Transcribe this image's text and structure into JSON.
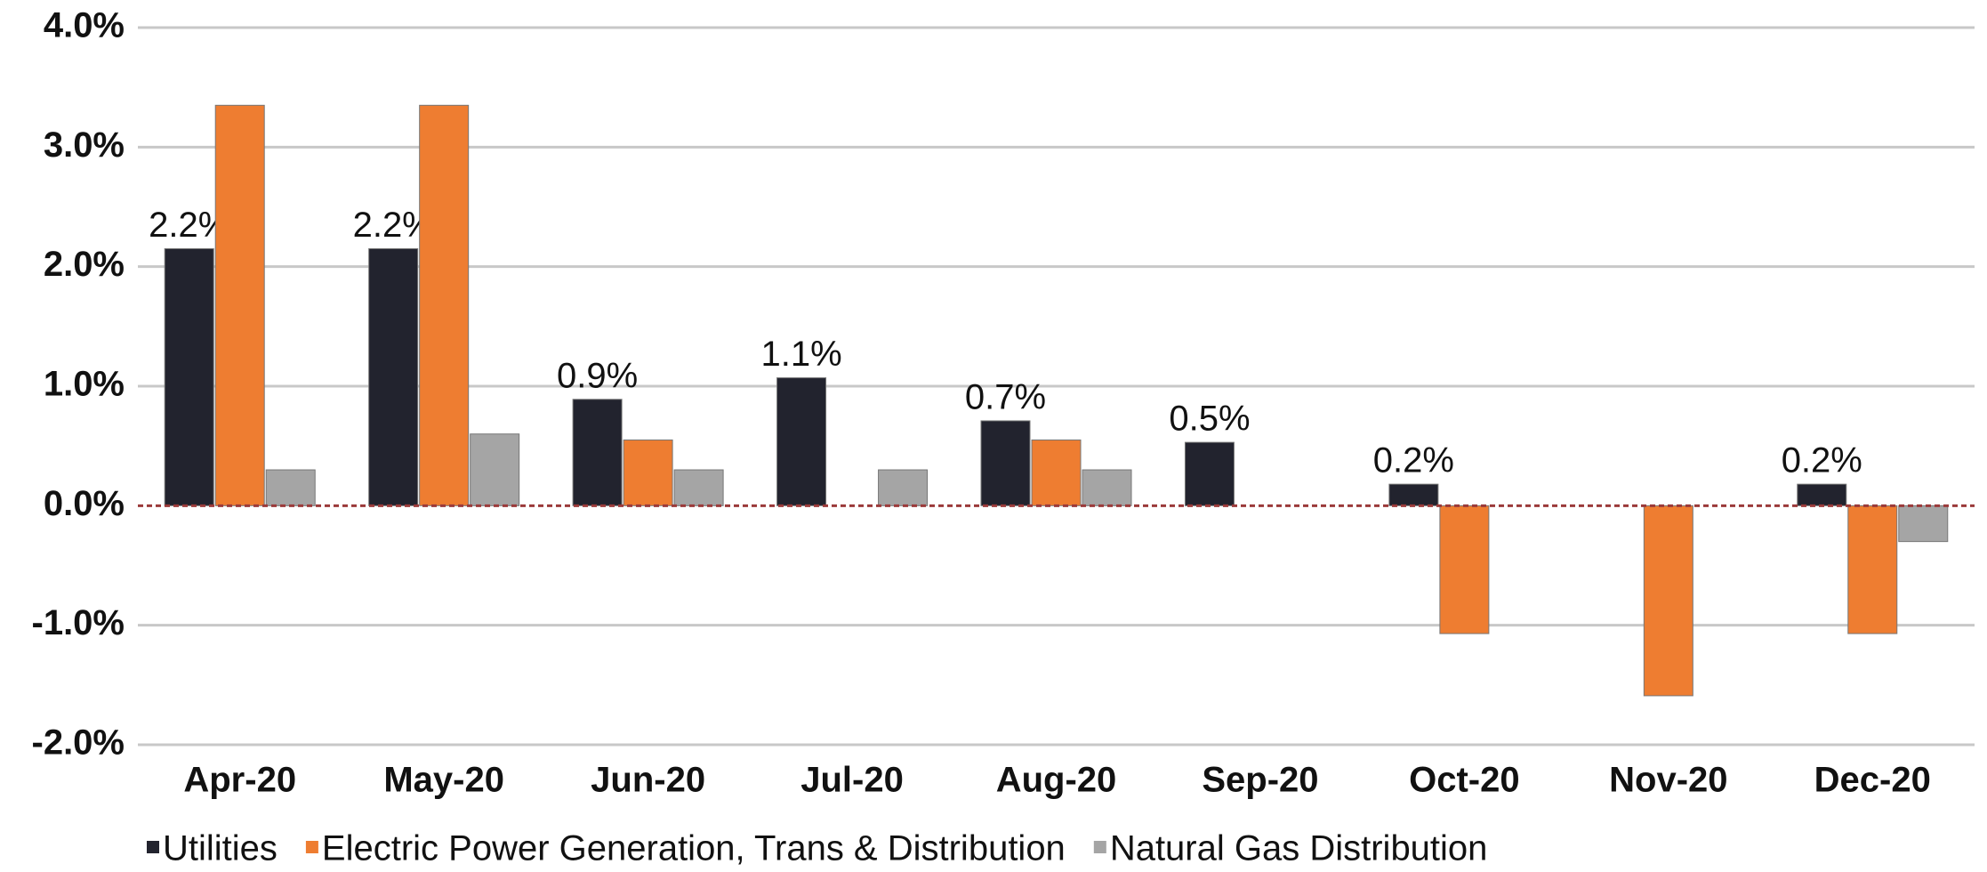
{
  "chart_data": {
    "type": "bar",
    "categories": [
      "Apr-20",
      "May-20",
      "Jun-20",
      "Jul-20",
      "Aug-20",
      "Sep-20",
      "Oct-20",
      "Nov-20",
      "Dec-20"
    ],
    "series": [
      {
        "name": "Utilities",
        "color": "#22232e",
        "values": [
          2.15,
          2.15,
          0.89,
          1.07,
          0.71,
          0.53,
          0.18,
          null,
          0.18
        ],
        "value_labels": [
          "2.2%",
          "2.2%",
          "0.9%",
          "1.1%",
          "0.7%",
          "0.5%",
          "0.2%",
          null,
          "0.2%"
        ]
      },
      {
        "name": "Electric Power Generation, Trans & Distribution",
        "color": "#ee7d31",
        "values": [
          3.35,
          3.35,
          0.55,
          0,
          0.55,
          0,
          -1.07,
          -1.59,
          -1.07
        ]
      },
      {
        "name": "Natural Gas Distribution",
        "color": "#a5a5a5",
        "values": [
          0.3,
          0.6,
          0.3,
          0.3,
          0.3,
          0,
          0,
          0,
          -0.3
        ]
      }
    ],
    "ylim": [
      -2,
      4
    ],
    "yticks": [
      {
        "value": -2,
        "label": "-2.0%"
      },
      {
        "value": -1,
        "label": "-1.0%"
      },
      {
        "value": 0,
        "label": "0.0%"
      },
      {
        "value": 1,
        "label": "1.0%"
      },
      {
        "value": 2,
        "label": "2.0%"
      },
      {
        "value": 3,
        "label": "3.0%"
      },
      {
        "value": 4,
        "label": "4.0%"
      }
    ],
    "grid": true
  }
}
